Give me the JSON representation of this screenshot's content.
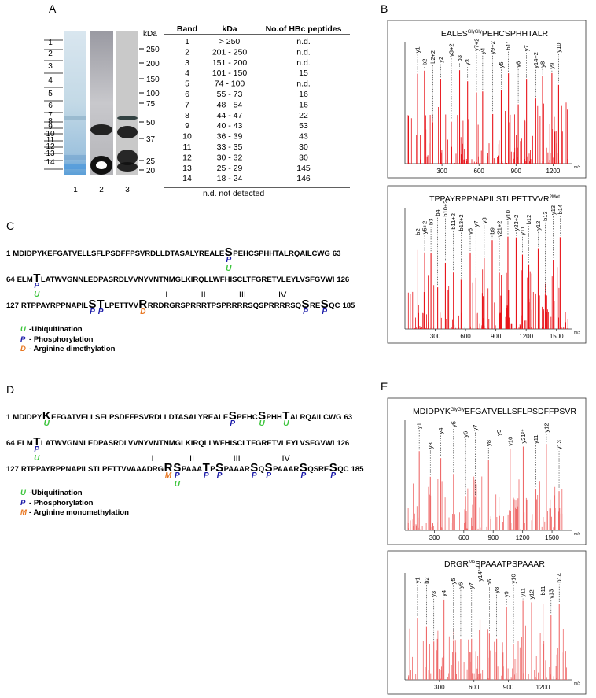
{
  "panel_labels": [
    "A",
    "B",
    "C",
    "D",
    "E"
  ],
  "gel": {
    "kda_label": "kDa",
    "markers": [
      "250",
      "200",
      "150",
      "100",
      "75",
      "50",
      "37",
      "25",
      "20"
    ],
    "band_numbers": [
      "1",
      "2",
      "3",
      "4",
      "5",
      "6",
      "7",
      "8",
      "9",
      "10",
      "11",
      "12",
      "13",
      "14"
    ],
    "lanes": [
      "1",
      "2",
      "3"
    ]
  },
  "table": {
    "headers": [
      "Band",
      "kDa",
      "No.of HBc peptides"
    ],
    "rows": [
      [
        "1",
        "> 250",
        "n.d."
      ],
      [
        "2",
        "201 - 250",
        "n.d."
      ],
      [
        "3",
        "151 - 200",
        "n.d."
      ],
      [
        "4",
        "101 - 150",
        "15"
      ],
      [
        "5",
        "74 - 100",
        "n.d."
      ],
      [
        "6",
        "55 - 73",
        "16"
      ],
      [
        "7",
        "48 - 54",
        "16"
      ],
      [
        "8",
        "44 - 47",
        "22"
      ],
      [
        "9",
        "40 - 43",
        "53"
      ],
      [
        "10",
        "36 - 39",
        "43"
      ],
      [
        "11",
        "33 - 35",
        "30"
      ],
      [
        "12",
        "30 - 32",
        "30"
      ],
      [
        "13",
        "25 - 29",
        "145"
      ],
      [
        "14",
        "18 - 24",
        "146"
      ]
    ],
    "footnote": "n.d.  not detected"
  },
  "spectra": [
    {
      "title": [
        {
          "text": "EALES"
        },
        {
          "text": "GlyGly",
          "sup": true
        },
        {
          "text": "PEHCSPHHTALR"
        }
      ],
      "ions": [
        "y1",
        "b2",
        "b2+2",
        "y2",
        "y3+2",
        "b3",
        "y3",
        "y7+2",
        "y4",
        "y9+2",
        "y5",
        "b11",
        "y6",
        "y7",
        "y14+2",
        "y8",
        "y9",
        "y10"
      ],
      "xlim": [
        0,
        1350
      ],
      "xticks": [
        300,
        600,
        900,
        1200
      ],
      "x_unit": "m/z",
      "color": "#e8151b"
    },
    {
      "title": [
        {
          "text": "TPPAYRPPNAPILSTLPETTVVR"
        },
        {
          "text": "2Met",
          "sup": true
        }
      ],
      "ions": [
        "b2",
        "y5+2",
        "b3",
        "b4",
        "b10+2",
        "b11+2",
        "b13+2",
        "y6",
        "y7",
        "y8",
        "b9",
        "y21+2",
        "y10",
        "y23+2",
        "y11",
        "b12",
        "y12",
        "b13",
        "y13",
        "b14"
      ],
      "xlim": [
        0,
        1650
      ],
      "xticks": [
        300,
        600,
        900,
        1200,
        1500
      ],
      "x_unit": "m/z",
      "color": "#e8151b"
    },
    {
      "title": [
        {
          "text": "MDIDPYK"
        },
        {
          "text": "GlyGly",
          "sup": true
        },
        {
          "text": "EFGATVELLSFLPSDFFPSVR"
        }
      ],
      "ions": [
        "y1",
        "y3",
        "y4",
        "y5",
        "y6",
        "y7",
        "y8",
        "y9",
        "y10",
        "y21²⁺",
        "y11",
        "y12",
        "y13"
      ],
      "xlim": [
        0,
        1700
      ],
      "xticks": [
        300,
        600,
        900,
        1200,
        1500
      ],
      "x_unit": "m/z",
      "color": "#ee6a6a"
    },
    {
      "title": [
        {
          "text": "DRGR"
        },
        {
          "text": "Me",
          "sup": true
        },
        {
          "text": "SPAAATPSPAAAR"
        }
      ],
      "ions": [
        "y1",
        "b2",
        "y3",
        "y4",
        "y5",
        "y6",
        "y7",
        "y14²⁺",
        "b6",
        "y8",
        "y9",
        "y10",
        "y11",
        "y12",
        "b11",
        "y13",
        "b14"
      ],
      "xlim": [
        0,
        1450
      ],
      "xticks": [
        300,
        600,
        900,
        1200
      ],
      "x_unit": "m/z",
      "color": "#ee6a6a"
    }
  ],
  "sequences": [
    {
      "lines": [
        {
          "start": "1",
          "segments": [
            {
              "text": "MDIDPYKEFGATVELLSFLPSDFFPSVRDLLDTASALYREALE"
            },
            {
              "text": "S",
              "marks": [
                "P",
                "U"
              ]
            },
            {
              "text": "PEHCSPHHTALRQAILCWG"
            }
          ],
          "end": "63"
        },
        {
          "start": "64",
          "segments": [
            {
              "text": "ELM"
            },
            {
              "text": "T",
              "marks": [
                "P",
                "U"
              ]
            },
            {
              "text": "LATWVGNNLEDPASRDLVVNYVNTNMGLKIRQLLWFHISCLTFGRETVLEYLVSFGVWI"
            }
          ],
          "end": "126"
        },
        {
          "start": "127",
          "segments": [
            {
              "text": "RTPPAYRPPNAPIL"
            },
            {
              "text": "S",
              "marks": [
                "P"
              ]
            },
            {
              "text": "T",
              "marks": [
                "P"
              ]
            },
            {
              "text": "LPETTVV"
            },
            {
              "text": "R",
              "marks": [
                "D"
              ]
            },
            {
              "text": "RRDRGRS",
              "above": "I"
            },
            {
              "text": "PRRRTPS",
              "above": "II"
            },
            {
              "text": "PRRRRSQS",
              "above": "III"
            },
            {
              "text": "PRRRRSQ",
              "above": "IV"
            },
            {
              "text": "S",
              "marks": [
                "P"
              ]
            },
            {
              "text": "RE"
            },
            {
              "text": "S",
              "marks": [
                "P"
              ]
            },
            {
              "text": "QC"
            }
          ],
          "end": "185"
        }
      ],
      "legend": [
        {
          "symbol": "U",
          "label": "-Ubiquitination",
          "color": "#3cc43c"
        },
        {
          "symbol": "P",
          "label": "- Phosphorylation",
          "color": "#1a1aa8"
        },
        {
          "symbol": "D",
          "label": "- Arginine dimethylation",
          "color": "#e87722"
        }
      ]
    },
    {
      "lines": [
        {
          "start": "1",
          "segments": [
            {
              "text": "MDIDPY"
            },
            {
              "text": "K",
              "marks": [
                "U"
              ]
            },
            {
              "text": "EFGATVELLSFLPSDFFPSVRDLLDTASALYREALE"
            },
            {
              "text": "S",
              "marks": [
                "P"
              ]
            },
            {
              "text": "PEHC"
            },
            {
              "text": "S",
              "marks": [
                "U"
              ]
            },
            {
              "text": "PHH"
            },
            {
              "text": "T",
              "marks": [
                "U"
              ]
            },
            {
              "text": "ALRQAILCWG"
            }
          ],
          "end": "63"
        },
        {
          "start": "64",
          "segments": [
            {
              "text": "ELM"
            },
            {
              "text": "T",
              "marks": [
                "P",
                "U"
              ]
            },
            {
              "text": "LATWVGNNLEDPASRDLVVNYVNTNMGLKIRQLLWFHISCLTFGRETVLEYLVSFGVWI"
            }
          ],
          "end": "126"
        },
        {
          "start": "127",
          "segments": [
            {
              "text": "RTPPAYRPPNAPILSTLPETTVVAA"
            },
            {
              "text": "ADRG",
              "above": "I"
            },
            {
              "text": "R",
              "marks": [
                "M"
              ]
            },
            {
              "text": "S",
              "marks": [
                "P",
                "U"
              ]
            },
            {
              "text": "PAAA",
              "above": "II"
            },
            {
              "text": "T",
              "marks": [
                "P"
              ]
            },
            {
              "text": "P"
            },
            {
              "text": "S",
              "marks": [
                "P"
              ]
            },
            {
              "text": "PAAAR",
              "above": "III"
            },
            {
              "text": "S",
              "marks": [
                "P"
              ]
            },
            {
              "text": "Q"
            },
            {
              "text": "S",
              "marks": [
                "P"
              ]
            },
            {
              "text": "PAAAR",
              "above": "IV"
            },
            {
              "text": "S",
              "marks": [
                "P"
              ]
            },
            {
              "text": "QSRE"
            },
            {
              "text": "S",
              "marks": [
                "P"
              ]
            },
            {
              "text": "QC"
            }
          ],
          "end": "185"
        }
      ],
      "legend": [
        {
          "symbol": "U",
          "label": "-Ubiquitination",
          "color": "#3cc43c"
        },
        {
          "symbol": "P",
          "label": "- Phosphorylation",
          "color": "#1a1aa8"
        },
        {
          "symbol": "M",
          "label": "- Arginine monomethylation",
          "color": "#e87722"
        }
      ]
    }
  ]
}
